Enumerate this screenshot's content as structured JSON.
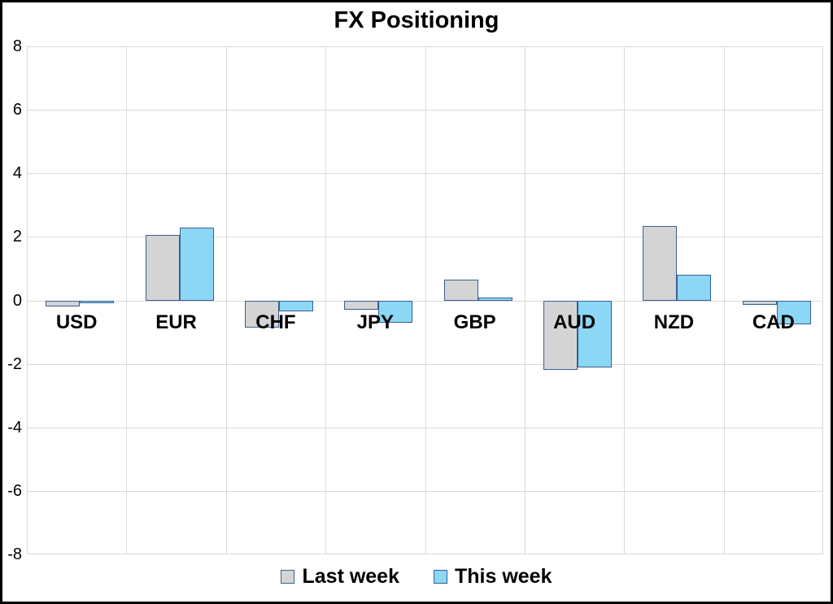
{
  "chart_data": {
    "type": "bar",
    "title": "FX Positioning",
    "categories": [
      "USD",
      "EUR",
      "CHF",
      "JPY",
      "GBP",
      "AUD",
      "NZD",
      "CAD"
    ],
    "series": [
      {
        "name": "Last week",
        "values": [
          -0.2,
          2.05,
          -0.85,
          -0.3,
          0.65,
          -2.2,
          2.35,
          -0.15
        ]
      },
      {
        "name": "This week",
        "values": [
          -0.05,
          2.3,
          -0.35,
          -0.7,
          0.1,
          -2.1,
          0.8,
          -0.75
        ]
      }
    ],
    "ylim": [
      -8,
      8
    ],
    "yticks": [
      "8",
      "6",
      "4",
      "2",
      "0",
      "-2",
      "-4",
      "-6",
      "-8"
    ],
    "ytick_values": [
      8,
      6,
      4,
      2,
      0,
      -2,
      -4,
      -6,
      -8
    ],
    "grid": true,
    "legend_position": "bottom"
  },
  "legend": {
    "items": [
      {
        "label": "Last week"
      },
      {
        "label": "This week"
      }
    ]
  },
  "colors": {
    "series_fills": [
      "#d4d4d4",
      "#8bd7f5"
    ],
    "bar_border": "#376092",
    "gridline": "#dadada",
    "background": "#ffffff",
    "text": "#000000",
    "frame_border": "#000000"
  }
}
